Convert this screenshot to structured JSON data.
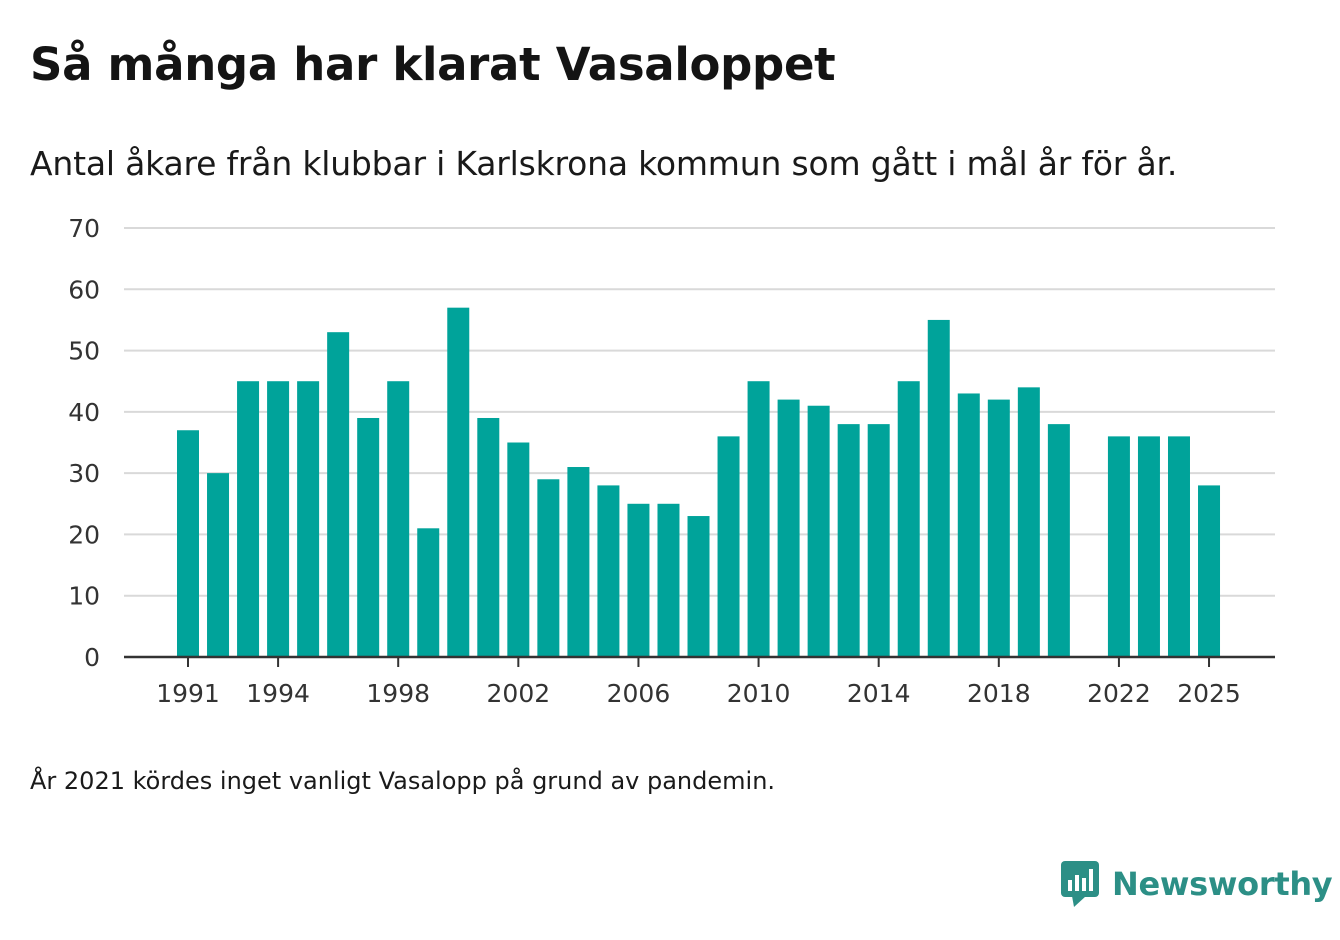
{
  "header": {
    "title": "Så många har klarat Vasaloppet",
    "subtitle": "Antal åkare från klubbar i Karlskrona kommun som gått i mål år för år."
  },
  "footer": {
    "note": "År 2021 kördes inget vanligt Vasalopp på grund av pandemin.",
    "brand": "Newsworthy"
  },
  "colors": {
    "bar": "#00a39a",
    "grid": "#d9d9d9",
    "axis": "#333333",
    "brand": "#2c8f86"
  },
  "chart_data": {
    "type": "bar",
    "title": "Så många har klarat Vasaloppet",
    "subtitle": "Antal åkare från klubbar i Karlskrona kommun som gått i mål år för år.",
    "xlabel": "",
    "ylabel": "",
    "ylim": [
      0,
      70
    ],
    "yticks": [
      0,
      10,
      20,
      30,
      40,
      50,
      60,
      70
    ],
    "xticks": [
      1991,
      1994,
      1998,
      2002,
      2006,
      2010,
      2014,
      2018,
      2022,
      2025
    ],
    "grid": true,
    "categories": [
      1991,
      1992,
      1993,
      1994,
      1995,
      1996,
      1997,
      1998,
      1999,
      2000,
      2001,
      2002,
      2003,
      2004,
      2005,
      2006,
      2007,
      2008,
      2009,
      2010,
      2011,
      2012,
      2013,
      2014,
      2015,
      2016,
      2017,
      2018,
      2019,
      2020,
      2021,
      2022,
      2023,
      2024,
      2025
    ],
    "values": [
      37,
      30,
      45,
      45,
      45,
      53,
      39,
      45,
      21,
      57,
      39,
      35,
      29,
      31,
      28,
      25,
      25,
      23,
      36,
      45,
      42,
      41,
      38,
      38,
      45,
      55,
      43,
      42,
      44,
      38,
      null,
      36,
      36,
      36,
      28
    ]
  }
}
